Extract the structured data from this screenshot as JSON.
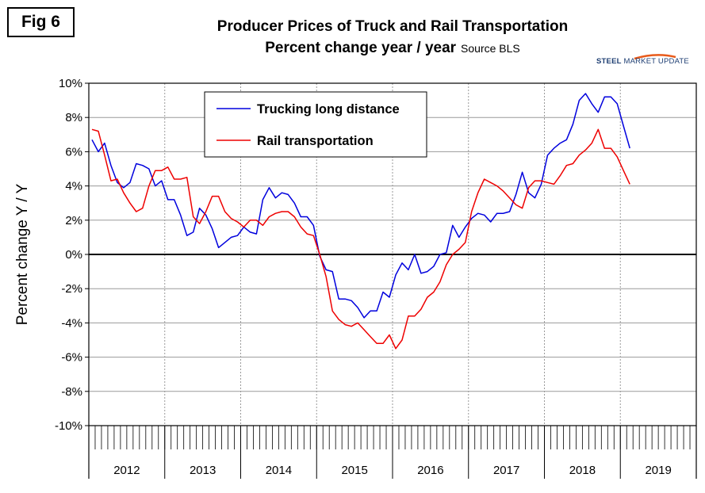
{
  "figure_label": "Fig 6",
  "title_line1": "Producer Prices of Truck and Rail Transportation",
  "title_line2": "Percent change year / year",
  "source": "Source BLS",
  "logo": {
    "word1": "STEEL",
    "word2": "MARKET UPDATE"
  },
  "chart_data": {
    "type": "line",
    "ylabel": "Percent change Y / Y",
    "xlabel": "",
    "ylim": [
      -10,
      10
    ],
    "yticks": [
      "10%",
      "8%",
      "6%",
      "4%",
      "2%",
      "0%",
      "-2%",
      "-4%",
      "-6%",
      "-8%",
      "-10%"
    ],
    "year_labels": [
      "2012",
      "2013",
      "2014",
      "2015",
      "2016",
      "2017",
      "2018",
      "2019"
    ],
    "months_per_year": 12,
    "grid": true,
    "zero_line": true,
    "legend_placement": "top-center",
    "series": [
      {
        "name": "Trucking long distance",
        "color": "#0000dd",
        "values": [
          6.7,
          6.0,
          6.5,
          5.2,
          4.2,
          3.9,
          4.2,
          5.3,
          5.2,
          5.0,
          4.0,
          4.3,
          3.2,
          3.2,
          2.3,
          1.1,
          1.3,
          2.7,
          2.3,
          1.5,
          0.4,
          0.7,
          1.0,
          1.1,
          1.6,
          1.3,
          1.2,
          3.2,
          3.9,
          3.3,
          3.6,
          3.5,
          3.0,
          2.2,
          2.2,
          1.7,
          -0.1,
          -0.9,
          -1.0,
          -2.6,
          -2.6,
          -2.7,
          -3.1,
          -3.7,
          -3.3,
          -3.3,
          -2.2,
          -2.5,
          -1.2,
          -0.5,
          -0.9,
          0.0,
          -1.1,
          -1.0,
          -0.7,
          0.0,
          0.1,
          1.7,
          1.0,
          1.6,
          2.1,
          2.4,
          2.3,
          1.9,
          2.4,
          2.4,
          2.5,
          3.5,
          4.8,
          3.6,
          3.3,
          4.1,
          5.8,
          6.2,
          6.5,
          6.7,
          7.6,
          9.0,
          9.4,
          8.8,
          8.3,
          9.2,
          9.2,
          8.8,
          7.5,
          6.2
        ]
      },
      {
        "name": "Rail transportation",
        "color": "#ee0000",
        "values": [
          7.3,
          7.2,
          5.8,
          4.3,
          4.4,
          3.6,
          3.0,
          2.5,
          2.7,
          4.0,
          4.9,
          4.9,
          5.1,
          4.4,
          4.4,
          4.5,
          2.2,
          1.8,
          2.5,
          3.4,
          3.4,
          2.5,
          2.1,
          1.9,
          1.6,
          2.0,
          2.0,
          1.7,
          2.2,
          2.4,
          2.5,
          2.5,
          2.2,
          1.6,
          1.2,
          1.1,
          0.0,
          -1.3,
          -3.3,
          -3.8,
          -4.1,
          -4.2,
          -4.0,
          -4.4,
          -4.8,
          -5.2,
          -5.2,
          -4.7,
          -5.5,
          -5.0,
          -3.6,
          -3.6,
          -3.2,
          -2.5,
          -2.2,
          -1.6,
          -0.6,
          0.0,
          0.3,
          0.7,
          2.5,
          3.6,
          4.4,
          4.2,
          4.0,
          3.7,
          3.3,
          2.9,
          2.7,
          3.9,
          4.3,
          4.3,
          4.2,
          4.1,
          4.6,
          5.2,
          5.3,
          5.8,
          6.1,
          6.5,
          7.3,
          6.2,
          6.2,
          5.7,
          4.9,
          4.1
        ]
      }
    ]
  }
}
